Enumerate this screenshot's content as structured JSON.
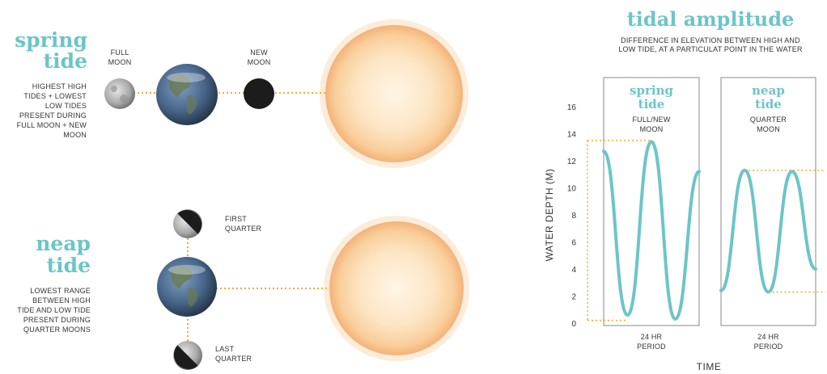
{
  "spring": {
    "title": "spring",
    "title2": "tide",
    "desc": [
      "HIGHEST HIGH",
      "TIDES + LOWEST",
      "LOW TIDES",
      "PRESENT DURING",
      "FULL MOON + NEW",
      "MOON"
    ],
    "full_moon": [
      "FULL",
      "MOON"
    ],
    "new_moon": [
      "NEW",
      "MOON"
    ]
  },
  "neap": {
    "title": "neap",
    "title2": "tide",
    "desc": [
      "LOWEST RANGE",
      "BETWEEN HIGH",
      "TIDE AND LOW TIDE",
      "PRESENT DURING",
      "QUARTER MOONS"
    ],
    "first_quarter": [
      "FIRST",
      "QUARTER"
    ],
    "last_quarter": [
      "LAST",
      "QUARTER"
    ]
  },
  "amplitude": {
    "title": "tidal amplitude",
    "subtitle": [
      "DIFFERENCE IN ELEVATION BETWEEN HIGH AND",
      "LOW TIDE, AT A PARTICULAT POINT IN THE WATER"
    ]
  },
  "colors": {
    "teal": "#6cc5c8",
    "dotted": "#f2a93b",
    "sun": "#f6c894",
    "box": "#888888"
  },
  "chart_data": {
    "type": "line",
    "ylabel": "WATER DEPTH (M)",
    "xlabel": "TIME",
    "ylim": [
      0,
      16
    ],
    "yticks": [
      0,
      2,
      4,
      6,
      8,
      10,
      12,
      14,
      16
    ],
    "panels": [
      {
        "title": "spring",
        "title2": "tide",
        "phase": [
          "FULL/NEW",
          "MOON"
        ],
        "period": [
          "24 HR",
          "PERIOD"
        ],
        "high": 13.5,
        "low": 0.2,
        "series_values": [
          12.7,
          0.6,
          13.4,
          0.3,
          11.2
        ]
      },
      {
        "title": "neap",
        "title2": "tide",
        "phase": [
          "QUARTER",
          "MOON"
        ],
        "period": [
          "24 HR",
          "PERIOD"
        ],
        "high": 11.3,
        "low": 2.3,
        "series_values": [
          2.4,
          11.3,
          2.3,
          11.2,
          4.0
        ]
      }
    ]
  }
}
